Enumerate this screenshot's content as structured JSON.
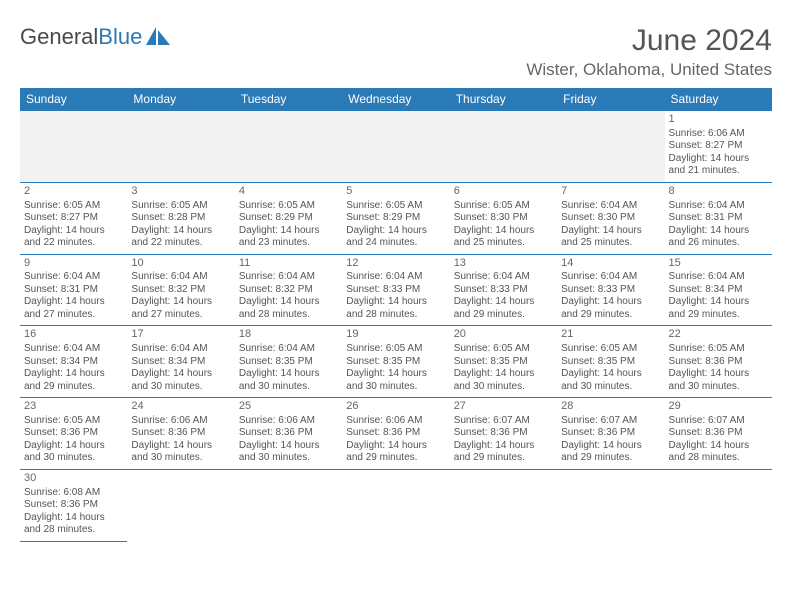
{
  "logo": {
    "text1": "General",
    "text2": "Blue"
  },
  "title": "June 2024",
  "location": "Wister, Oklahoma, United States",
  "colors": {
    "header_bg": "#2a7ab8",
    "header_fg": "#ffffff",
    "border": "#2a7ab8",
    "text": "#555555",
    "empty_bg": "#f2f2f2",
    "page_bg": "#ffffff"
  },
  "day_headers": [
    "Sunday",
    "Monday",
    "Tuesday",
    "Wednesday",
    "Thursday",
    "Friday",
    "Saturday"
  ],
  "weeks": [
    [
      null,
      null,
      null,
      null,
      null,
      null,
      {
        "n": "1",
        "sr": "6:06 AM",
        "ss": "8:27 PM",
        "dl": "14 hours and 21 minutes."
      }
    ],
    [
      {
        "n": "2",
        "sr": "6:05 AM",
        "ss": "8:27 PM",
        "dl": "14 hours and 22 minutes."
      },
      {
        "n": "3",
        "sr": "6:05 AM",
        "ss": "8:28 PM",
        "dl": "14 hours and 22 minutes."
      },
      {
        "n": "4",
        "sr": "6:05 AM",
        "ss": "8:29 PM",
        "dl": "14 hours and 23 minutes."
      },
      {
        "n": "5",
        "sr": "6:05 AM",
        "ss": "8:29 PM",
        "dl": "14 hours and 24 minutes."
      },
      {
        "n": "6",
        "sr": "6:05 AM",
        "ss": "8:30 PM",
        "dl": "14 hours and 25 minutes."
      },
      {
        "n": "7",
        "sr": "6:04 AM",
        "ss": "8:30 PM",
        "dl": "14 hours and 25 minutes."
      },
      {
        "n": "8",
        "sr": "6:04 AM",
        "ss": "8:31 PM",
        "dl": "14 hours and 26 minutes."
      }
    ],
    [
      {
        "n": "9",
        "sr": "6:04 AM",
        "ss": "8:31 PM",
        "dl": "14 hours and 27 minutes."
      },
      {
        "n": "10",
        "sr": "6:04 AM",
        "ss": "8:32 PM",
        "dl": "14 hours and 27 minutes."
      },
      {
        "n": "11",
        "sr": "6:04 AM",
        "ss": "8:32 PM",
        "dl": "14 hours and 28 minutes."
      },
      {
        "n": "12",
        "sr": "6:04 AM",
        "ss": "8:33 PM",
        "dl": "14 hours and 28 minutes."
      },
      {
        "n": "13",
        "sr": "6:04 AM",
        "ss": "8:33 PM",
        "dl": "14 hours and 29 minutes."
      },
      {
        "n": "14",
        "sr": "6:04 AM",
        "ss": "8:33 PM",
        "dl": "14 hours and 29 minutes."
      },
      {
        "n": "15",
        "sr": "6:04 AM",
        "ss": "8:34 PM",
        "dl": "14 hours and 29 minutes."
      }
    ],
    [
      {
        "n": "16",
        "sr": "6:04 AM",
        "ss": "8:34 PM",
        "dl": "14 hours and 29 minutes."
      },
      {
        "n": "17",
        "sr": "6:04 AM",
        "ss": "8:34 PM",
        "dl": "14 hours and 30 minutes."
      },
      {
        "n": "18",
        "sr": "6:04 AM",
        "ss": "8:35 PM",
        "dl": "14 hours and 30 minutes."
      },
      {
        "n": "19",
        "sr": "6:05 AM",
        "ss": "8:35 PM",
        "dl": "14 hours and 30 minutes."
      },
      {
        "n": "20",
        "sr": "6:05 AM",
        "ss": "8:35 PM",
        "dl": "14 hours and 30 minutes."
      },
      {
        "n": "21",
        "sr": "6:05 AM",
        "ss": "8:35 PM",
        "dl": "14 hours and 30 minutes."
      },
      {
        "n": "22",
        "sr": "6:05 AM",
        "ss": "8:36 PM",
        "dl": "14 hours and 30 minutes."
      }
    ],
    [
      {
        "n": "23",
        "sr": "6:05 AM",
        "ss": "8:36 PM",
        "dl": "14 hours and 30 minutes."
      },
      {
        "n": "24",
        "sr": "6:06 AM",
        "ss": "8:36 PM",
        "dl": "14 hours and 30 minutes."
      },
      {
        "n": "25",
        "sr": "6:06 AM",
        "ss": "8:36 PM",
        "dl": "14 hours and 30 minutes."
      },
      {
        "n": "26",
        "sr": "6:06 AM",
        "ss": "8:36 PM",
        "dl": "14 hours and 29 minutes."
      },
      {
        "n": "27",
        "sr": "6:07 AM",
        "ss": "8:36 PM",
        "dl": "14 hours and 29 minutes."
      },
      {
        "n": "28",
        "sr": "6:07 AM",
        "ss": "8:36 PM",
        "dl": "14 hours and 29 minutes."
      },
      {
        "n": "29",
        "sr": "6:07 AM",
        "ss": "8:36 PM",
        "dl": "14 hours and 28 minutes."
      }
    ],
    [
      {
        "n": "30",
        "sr": "6:08 AM",
        "ss": "8:36 PM",
        "dl": "14 hours and 28 minutes."
      },
      null,
      null,
      null,
      null,
      null,
      null
    ]
  ],
  "labels": {
    "sunrise": "Sunrise:",
    "sunset": "Sunset:",
    "daylight": "Daylight:"
  }
}
